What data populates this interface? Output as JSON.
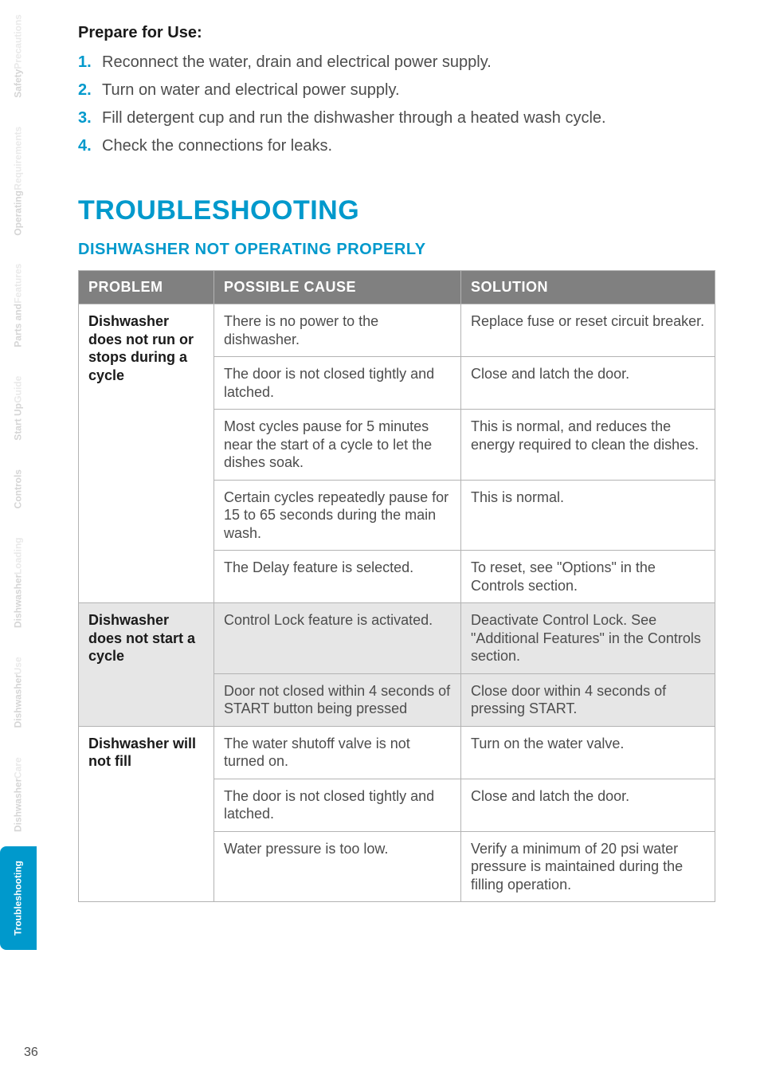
{
  "sidebar": {
    "tabs": [
      {
        "line1": "Safety",
        "line2": "Precautions",
        "active": false
      },
      {
        "line1": "Operating",
        "line2": "Requirements",
        "active": false
      },
      {
        "line1": "Parts and",
        "line2": "Features",
        "active": false
      },
      {
        "line1": "Start Up",
        "line2": "Guide",
        "active": false
      },
      {
        "line1": "Controls",
        "line2": "",
        "active": false
      },
      {
        "line1": "Dishwasher",
        "line2": "Loading",
        "active": false
      },
      {
        "line1": "Dishwasher",
        "line2": "Use",
        "active": false
      },
      {
        "line1": "Dishwasher",
        "line2": "Care",
        "active": false
      },
      {
        "line1": "Troubleshooting",
        "line2": "",
        "active": true
      }
    ]
  },
  "prepare": {
    "heading": "Prepare for Use:",
    "steps": [
      {
        "num": "1.",
        "text": "Reconnect the water, drain and electrical power supply."
      },
      {
        "num": "2.",
        "text": "Turn on water and electrical power supply."
      },
      {
        "num": "3.",
        "text": "Fill detergent cup and run the dishwasher through a heated wash cycle."
      },
      {
        "num": "4.",
        "text": "Check the connections for leaks."
      }
    ]
  },
  "heading_main": "TROUBLESHOOTING",
  "heading_sub": "DISHWASHER NOT OPERATING PROPERLY",
  "table": {
    "headers": [
      "PROBLEM",
      "POSSIBLE CAUSE",
      "SOLUTION"
    ],
    "groups": [
      {
        "problem": "Dishwasher does not run or stops during a cycle",
        "shaded": false,
        "rows": [
          {
            "cause": "There is no power to the dishwasher.",
            "solution": "Replace fuse or reset circuit breaker."
          },
          {
            "cause": "The door is not closed tightly and latched.",
            "solution": "Close and latch the door."
          },
          {
            "cause": "Most cycles pause for 5 minutes near the start of a cycle to let the dishes soak.",
            "solution": "This is normal, and reduces the energy required to clean the dishes."
          },
          {
            "cause": "Certain cycles repeatedly pause for 15 to 65 seconds during the main wash.",
            "solution": "This is normal."
          },
          {
            "cause": "The Delay feature is selected.",
            "solution": "To reset, see \"Options\" in the Controls section."
          }
        ]
      },
      {
        "problem": "Dishwasher does not start a cycle",
        "shaded": true,
        "rows": [
          {
            "cause": "Control Lock feature is activated.",
            "solution": "Deactivate Control Lock. See \"Additional Features\" in the Controls section."
          },
          {
            "cause": "Door not closed within 4 seconds of START button being pressed",
            "solution": "Close door within 4 seconds of pressing START."
          }
        ]
      },
      {
        "problem": "Dishwasher will not fill",
        "shaded": false,
        "rows": [
          {
            "cause": "The water shutoff valve is not turned on.",
            "solution": "Turn on the water valve."
          },
          {
            "cause": "The door is not closed tightly and latched.",
            "solution": "Close and latch the door."
          },
          {
            "cause": "Water pressure is too low.",
            "solution": "Verify a minimum of 20 psi water pressure is maintained during the filling operation."
          }
        ]
      }
    ]
  },
  "page_number": "36",
  "colors": {
    "accent": "#0099cc",
    "header_bg": "#808080",
    "border": "#b3b3b3",
    "shaded_bg": "#e6e6e6",
    "body_text": "#4d4d4d",
    "tab_inactive": "#d5d5d5"
  }
}
